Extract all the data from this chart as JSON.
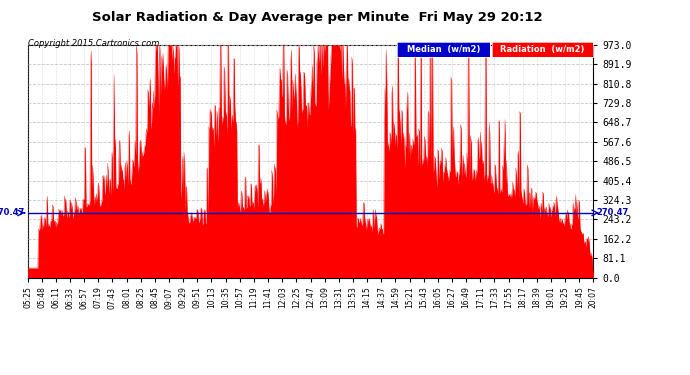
{
  "title": "Solar Radiation & Day Average per Minute  Fri May 29 20:12",
  "copyright": "Copyright 2015 Cartronics.com",
  "median_value": 270.47,
  "yticks": [
    0.0,
    81.1,
    162.2,
    243.2,
    324.3,
    405.4,
    486.5,
    567.6,
    648.7,
    729.8,
    810.8,
    891.9,
    973.0
  ],
  "ymax": 973.0,
  "ymin": 0.0,
  "bg_color": "#ffffff",
  "plot_bg_color": "#ffffff",
  "grid_color": "#bbbbbb",
  "fill_color": "#ff0000",
  "line_color": "#ff0000",
  "median_color": "#0000bb",
  "legend_median_bg": "#0000cc",
  "legend_radiation_bg": "#ff0000",
  "xtick_labels": [
    "05:25",
    "05:48",
    "06:11",
    "06:33",
    "06:57",
    "07:19",
    "07:43",
    "08:01",
    "08:25",
    "08:45",
    "09:07",
    "09:29",
    "09:51",
    "10:13",
    "10:35",
    "10:57",
    "11:19",
    "11:41",
    "12:03",
    "12:25",
    "12:47",
    "13:09",
    "13:31",
    "13:53",
    "14:15",
    "14:37",
    "14:59",
    "15:21",
    "15:43",
    "16:05",
    "16:27",
    "16:49",
    "17:11",
    "17:33",
    "17:55",
    "18:17",
    "18:39",
    "19:01",
    "19:25",
    "19:45",
    "20:07"
  ],
  "num_points": 891,
  "seed": 7
}
